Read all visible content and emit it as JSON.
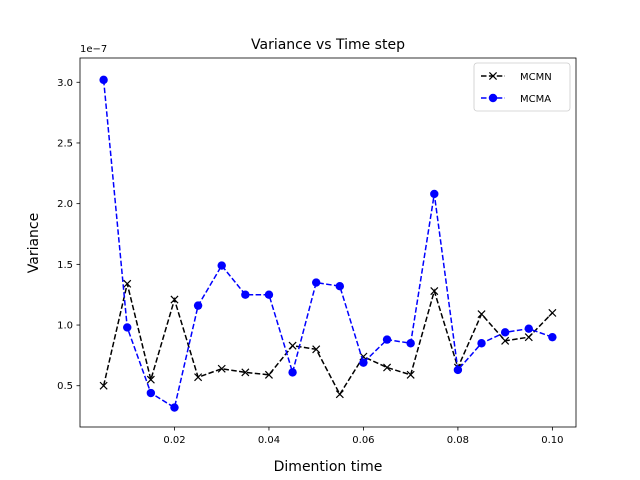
{
  "chart_data": {
    "type": "line",
    "title": "Variance vs Time step",
    "xlabel": "Dimention time",
    "ylabel": "Variance",
    "y_offset_label": "1e−7",
    "xlim": [
      0.0,
      0.105
    ],
    "ylim": [
      1.6e-08,
      3.2e-07
    ],
    "x_ticks": [
      0.02,
      0.04,
      0.06,
      0.08,
      0.1
    ],
    "x_tick_labels": [
      "0.02",
      "0.04",
      "0.06",
      "0.08",
      "0.10"
    ],
    "y_ticks": [
      5e-08,
      1e-07,
      1.5e-07,
      2e-07,
      2.5e-07,
      3e-07
    ],
    "y_tick_labels": [
      "0.5",
      "1.0",
      "1.5",
      "2.0",
      "2.5",
      "3.0"
    ],
    "grid": false,
    "legend_position": "top-right",
    "x": [
      0.005,
      0.01,
      0.015,
      0.02,
      0.025,
      0.03,
      0.035,
      0.04,
      0.045,
      0.05,
      0.055,
      0.06,
      0.065,
      0.07,
      0.075,
      0.08,
      0.085,
      0.09,
      0.095,
      0.1
    ],
    "series": [
      {
        "name": "MCMN",
        "color": "#000000",
        "marker": "x",
        "values": [
          5e-08,
          1.34e-07,
          5.5e-08,
          1.21e-07,
          5.7e-08,
          6.4e-08,
          6.1e-08,
          5.9e-08,
          8.3e-08,
          8e-08,
          4.3e-08,
          7.4e-08,
          6.5e-08,
          5.9e-08,
          1.28e-07,
          6.5e-08,
          1.09e-07,
          8.7e-08,
          9e-08,
          1.1e-07
        ]
      },
      {
        "name": "MCMA",
        "color": "#0000ff",
        "marker": "o",
        "values": [
          3.02e-07,
          9.8e-08,
          4.4e-08,
          3.2e-08,
          1.16e-07,
          1.49e-07,
          1.25e-07,
          1.25e-07,
          6.1e-08,
          1.35e-07,
          1.32e-07,
          6.9e-08,
          8.8e-08,
          8.5e-08,
          2.08e-07,
          6.3e-08,
          8.5e-08,
          9.4e-08,
          9.7e-08,
          9e-08
        ]
      }
    ]
  }
}
